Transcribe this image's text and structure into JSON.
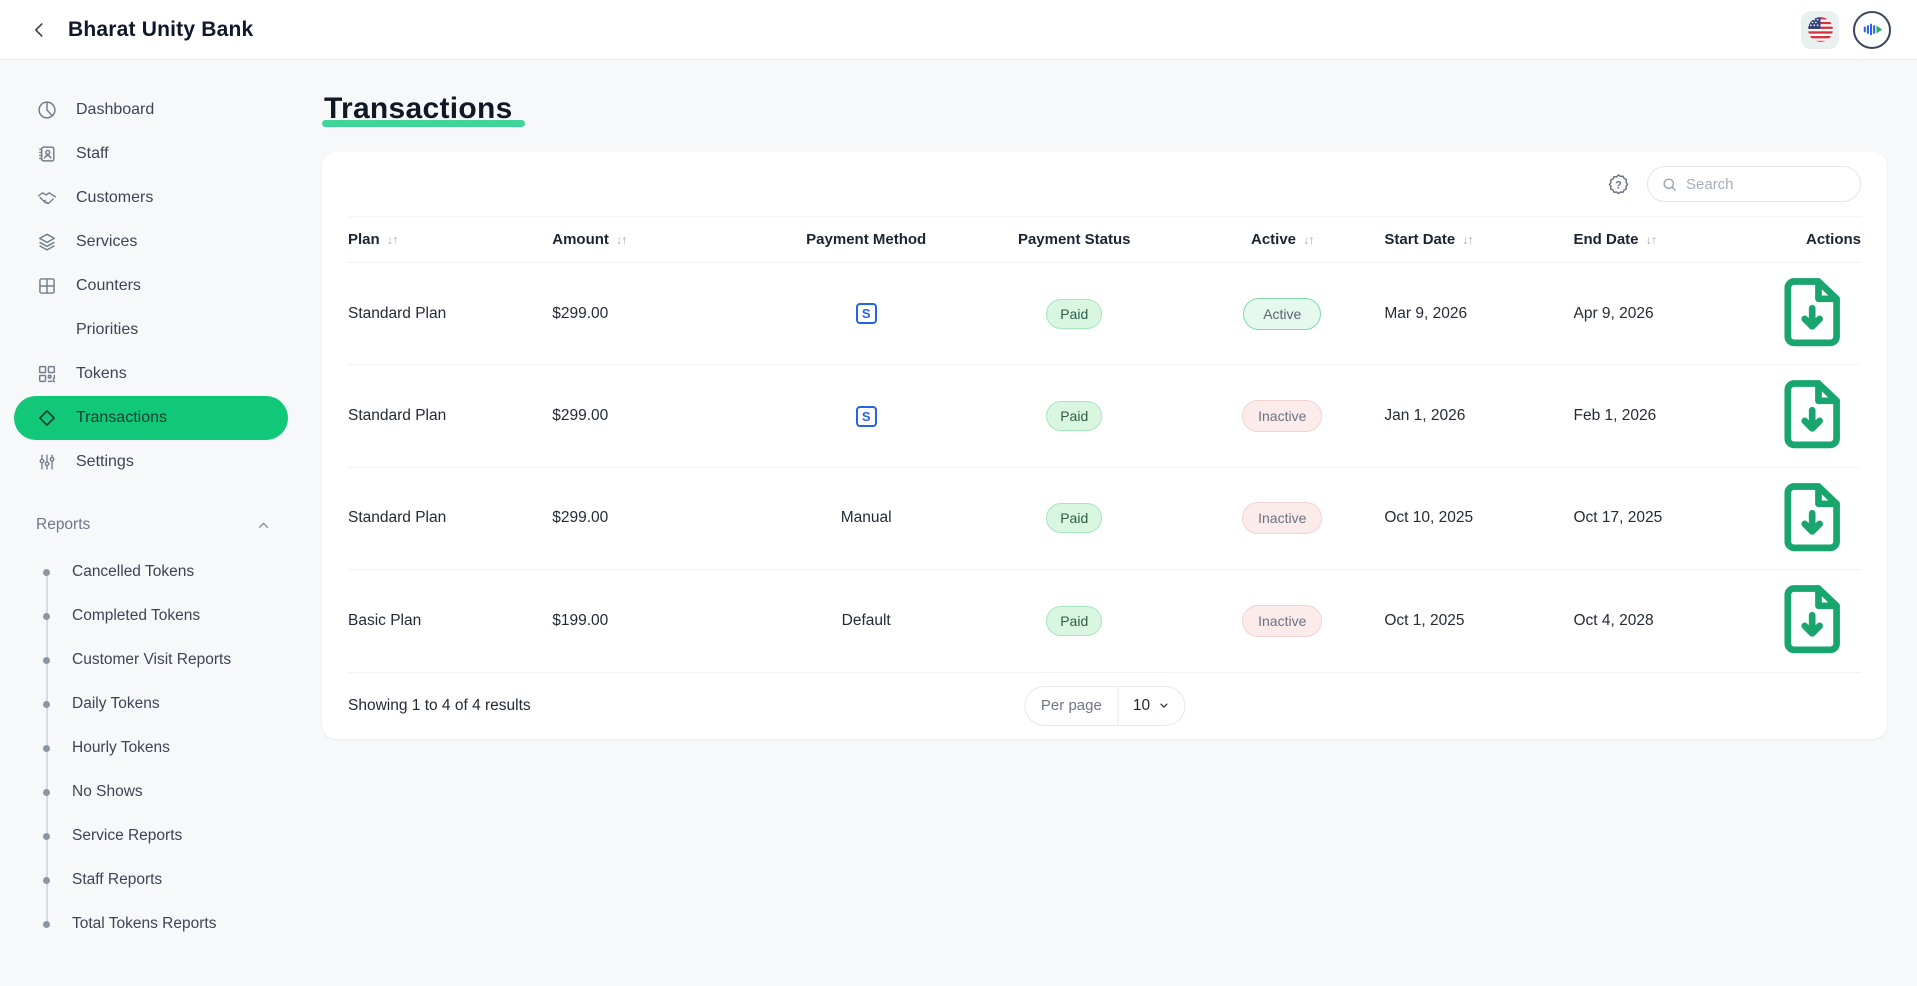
{
  "colors": {
    "accent": "#10c877",
    "title_underline": "#3fd598",
    "paid_bg": "#d9f6e1",
    "paid_border": "#a4e7bf",
    "paid_text": "#2f5c46",
    "active_bg": "#e6f9ee",
    "active_border": "#7edcaa",
    "active_text": "#5a6470",
    "inactive_bg": "#fcebeb",
    "inactive_border": "#f2d3d2",
    "inactive_text": "#6a7280",
    "stripe_blue": "#2563eb",
    "invoice_green": "#18a56e"
  },
  "header": {
    "brand": "Bharat Unity Bank",
    "back_icon": "chevron-left-icon",
    "language_icon": "us-flag-icon",
    "profile_icon": "brand-logo-icon"
  },
  "sidebar": {
    "items": [
      {
        "label": "Dashboard",
        "icon": "pie-chart-icon",
        "active": false
      },
      {
        "label": "Staff",
        "icon": "id-book-icon",
        "active": false
      },
      {
        "label": "Customers",
        "icon": "handshake-icon",
        "active": false
      },
      {
        "label": "Services",
        "icon": "layers-icon",
        "active": false
      },
      {
        "label": "Counters",
        "icon": "grid-icon",
        "active": false
      },
      {
        "label": "Priorities",
        "icon": "flame-icon",
        "active": false
      },
      {
        "label": "Tokens",
        "icon": "qr-code-icon",
        "active": false
      },
      {
        "label": "Transactions",
        "icon": "diamond-icon",
        "active": true
      },
      {
        "label": "Settings",
        "icon": "sliders-icon",
        "active": false
      }
    ],
    "reports": {
      "label": "Reports",
      "collapse_icon": "chevron-up-icon",
      "items": [
        "Cancelled Tokens",
        "Completed Tokens",
        "Customer Visit Reports",
        "Daily Tokens",
        "Hourly Tokens",
        "No Shows",
        "Service Reports",
        "Staff Reports",
        "Total Tokens Reports"
      ]
    }
  },
  "page": {
    "title": "Transactions"
  },
  "toolbar": {
    "help_icon": "help-badge-icon",
    "search_icon": "search-icon",
    "search_placeholder": "Search",
    "search_value": ""
  },
  "table": {
    "sort_glyph": "↓↑",
    "action_icon": "invoice-download-icon",
    "columns": [
      {
        "label": "Plan",
        "sortable": true,
        "align": "left"
      },
      {
        "label": "Amount",
        "sortable": true,
        "align": "left"
      },
      {
        "label": "Payment Method",
        "sortable": false,
        "align": "center"
      },
      {
        "label": "Payment Status",
        "sortable": false,
        "align": "center"
      },
      {
        "label": "Active",
        "sortable": true,
        "align": "center"
      },
      {
        "label": "Start Date",
        "sortable": true,
        "align": "left"
      },
      {
        "label": "End Date",
        "sortable": true,
        "align": "left"
      },
      {
        "label": "Actions",
        "sortable": false,
        "align": "right"
      }
    ],
    "rows": [
      {
        "plan": "Standard Plan",
        "amount": "$299.00",
        "method": {
          "type": "icon",
          "icon": "stripe-icon",
          "label": "S"
        },
        "payment_status": "Paid",
        "active": "Active",
        "start_date": "Mar 9, 2026",
        "end_date": "Apr 9, 2026"
      },
      {
        "plan": "Standard Plan",
        "amount": "$299.00",
        "method": {
          "type": "icon",
          "icon": "stripe-icon",
          "label": "S"
        },
        "payment_status": "Paid",
        "active": "Inactive",
        "start_date": "Jan 1, 2026",
        "end_date": "Feb 1, 2026"
      },
      {
        "plan": "Standard Plan",
        "amount": "$299.00",
        "method": {
          "type": "text",
          "label": "Manual"
        },
        "payment_status": "Paid",
        "active": "Inactive",
        "start_date": "Oct 10, 2025",
        "end_date": "Oct 17, 2025"
      },
      {
        "plan": "Basic Plan",
        "amount": "$199.00",
        "method": {
          "type": "text",
          "label": "Default"
        },
        "payment_status": "Paid",
        "active": "Inactive",
        "start_date": "Oct 1, 2025",
        "end_date": "Oct 4, 2028"
      }
    ]
  },
  "footer": {
    "summary": "Showing 1 to 4 of 4 results",
    "per_page_label": "Per page",
    "per_page_value": "10",
    "dropdown_icon": "chevron-down-icon"
  }
}
